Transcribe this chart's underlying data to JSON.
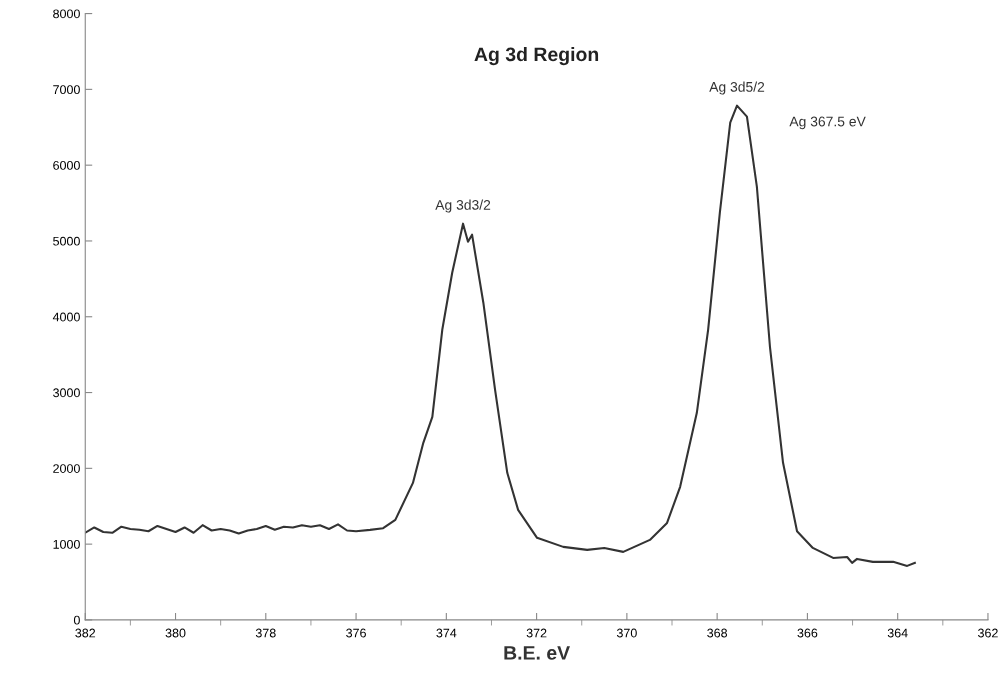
{
  "chart_data": {
    "type": "line",
    "title": "Ag 3d Region",
    "xlabel": "B.E. eV",
    "xlim": [
      382,
      362
    ],
    "xticks": [
      382,
      380,
      378,
      376,
      374,
      372,
      370,
      368,
      366,
      364,
      362
    ],
    "ylim": [
      0,
      8000
    ],
    "yticks": [
      0,
      1000,
      2000,
      3000,
      4000,
      5000,
      6000,
      7000,
      8000
    ],
    "grid": false,
    "legend": false,
    "marker": "none",
    "line_style": "solid",
    "annotations": [
      {
        "text": "Ag 3d3/2",
        "x": 373.63,
        "y": 5228
      },
      {
        "text": "Ag 3d5/2",
        "x": 367.56,
        "y": 6785
      },
      "Ag 367.5 eV"
    ],
    "series": [
      {
        "color": "#333333",
        "x": [
          382.0,
          381.8,
          381.6,
          381.4,
          381.2,
          381.0,
          380.8,
          380.6,
          380.4,
          380.2,
          380.0,
          379.8,
          379.6,
          379.4,
          379.2,
          379.0,
          378.8,
          378.6,
          378.4,
          378.2,
          378.0,
          377.8,
          377.6,
          377.4,
          377.2,
          377.0,
          376.8,
          376.6,
          376.4,
          376.2,
          376.0,
          375.69,
          375.4,
          375.13,
          374.74,
          374.51,
          374.31,
          374.09,
          373.87,
          373.63,
          373.52,
          373.43,
          373.18,
          372.92,
          372.65,
          372.41,
          371.99,
          371.41,
          370.88,
          370.5,
          370.08,
          369.49,
          369.11,
          368.82,
          368.45,
          368.2,
          367.94,
          367.71,
          367.56,
          367.34,
          367.12,
          366.83,
          366.54,
          366.23,
          365.88,
          365.43,
          365.12,
          365.01,
          364.9,
          364.55,
          364.1,
          363.79,
          363.62
        ],
        "values": [
          1150,
          1220,
          1160,
          1150,
          1230,
          1200,
          1190,
          1170,
          1240,
          1200,
          1160,
          1220,
          1150,
          1250,
          1180,
          1200,
          1180,
          1140,
          1180,
          1200,
          1240,
          1190,
          1230,
          1220,
          1250,
          1230,
          1250,
          1200,
          1260,
          1180,
          1170,
          1188,
          1210,
          1320,
          1808,
          2337,
          2680,
          3828,
          4581,
          5228,
          4990,
          5083,
          4185,
          3036,
          1941,
          1452,
          1083,
          964,
          924,
          950,
          898,
          1056,
          1280,
          1756,
          2733,
          3828,
          5373,
          6561,
          6785,
          6640,
          5716,
          3604,
          2073,
          1170,
          950,
          818,
          830,
          752,
          805,
          766,
          766,
          713,
          752
        ]
      }
    ]
  }
}
